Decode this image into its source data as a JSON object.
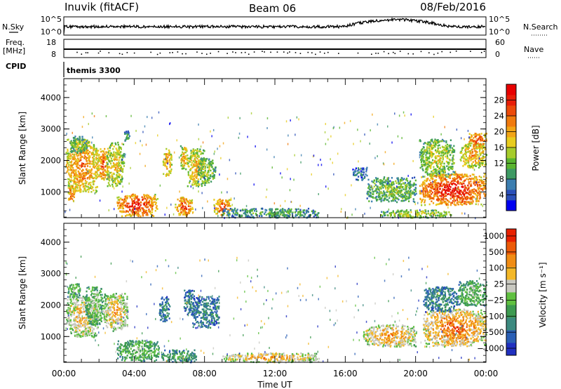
{
  "header": {
    "title": "Inuvik (fitACF)",
    "beam": "Beam 06",
    "date": "08/Feb/2016"
  },
  "params": {
    "nsky_label": "N.Sky",
    "nsearch_label": "N.Search",
    "freq_label": "Freq.",
    "freq_unit": "[MHz]",
    "nave_label": "Nave",
    "cpid_label": "CPID",
    "cpid_value": "themis 3300",
    "nsky_ticks": [
      "10^5",
      "10^0"
    ],
    "nsearch_ticks": [
      "10^5",
      "10^0"
    ],
    "freq_ticks": [
      "18",
      "8"
    ],
    "nave_ticks": [
      "60",
      "0"
    ]
  },
  "chart_data": [
    {
      "type": "heatmap",
      "name": "power",
      "xlabel": "",
      "ylabel": "Slant Range [km]",
      "xlim": [
        0,
        24
      ],
      "ylim": [
        180,
        4600
      ],
      "y_ticks": [
        1000,
        2000,
        3000,
        4000
      ],
      "colorbar": {
        "label": "Power [dB]",
        "ticks": [
          "4",
          "8",
          "12",
          "16",
          "20",
          "24",
          "28"
        ],
        "colors": [
          "#0000f0",
          "#2a4fb8",
          "#3c7eb0",
          "#3e9a64",
          "#5ab530",
          "#a6cc2c",
          "#e8cc1e",
          "#f2a516",
          "#f07a0e",
          "#ec4a0a",
          "#e81e08",
          "#e80000"
        ]
      },
      "features": [
        {
          "x": [
            0.1,
            1.9
          ],
          "y": [
            1000,
            2700
          ],
          "level": 0.78
        },
        {
          "x": [
            0.3,
            1.3
          ],
          "y": [
            2250,
            2800
          ],
          "level": 0.45
        },
        {
          "x": [
            0.2,
            0.6
          ],
          "y": [
            700,
            1200
          ],
          "level": 0.85
        },
        {
          "x": [
            1.9,
            2.5
          ],
          "y": [
            1400,
            2400
          ],
          "level": 0.82
        },
        {
          "x": [
            2.4,
            3.4
          ],
          "y": [
            1200,
            2600
          ],
          "level": 0.62
        },
        {
          "x": [
            3.0,
            5.3
          ],
          "y": [
            250,
            950
          ],
          "level": 0.94
        },
        {
          "x": [
            3.4,
            3.7
          ],
          "y": [
            2600,
            3000
          ],
          "level": 0.35
        },
        {
          "x": [
            5.6,
            6.1
          ],
          "y": [
            1500,
            2400
          ],
          "level": 0.74
        },
        {
          "x": [
            6.6,
            7.0
          ],
          "y": [
            1700,
            2500
          ],
          "level": 0.7
        },
        {
          "x": [
            7.0,
            8.0
          ],
          "y": [
            1200,
            2400
          ],
          "level": 0.66
        },
        {
          "x": [
            7.6,
            8.6
          ],
          "y": [
            1300,
            2100
          ],
          "level": 0.5
        },
        {
          "x": [
            6.3,
            7.3
          ],
          "y": [
            250,
            850
          ],
          "level": 0.86
        },
        {
          "x": [
            8.5,
            9.5
          ],
          "y": [
            250,
            800
          ],
          "level": 0.86
        },
        {
          "x": [
            9.0,
            14.5
          ],
          "y": [
            200,
            500
          ],
          "level": 0.35
        },
        {
          "x": [
            16.4,
            17.2
          ],
          "y": [
            1400,
            1800
          ],
          "level": 0.25
        },
        {
          "x": [
            17.2,
            20.0
          ],
          "y": [
            700,
            1500
          ],
          "level": 0.45
        },
        {
          "x": [
            18.0,
            22.0
          ],
          "y": [
            200,
            450
          ],
          "level": 0.55
        },
        {
          "x": [
            20.2,
            22.2
          ],
          "y": [
            1500,
            2700
          ],
          "level": 0.55
        },
        {
          "x": [
            20.2,
            24.0
          ],
          "y": [
            600,
            1600
          ],
          "level": 0.96
        },
        {
          "x": [
            22.5,
            24.0
          ],
          "y": [
            1800,
            2600
          ],
          "level": 0.7
        },
        {
          "x": [
            23.0,
            24.0
          ],
          "y": [
            2400,
            2900
          ],
          "level": 0.9
        }
      ]
    },
    {
      "type": "heatmap",
      "name": "velocity",
      "xlabel": "Time UT",
      "ylabel": "Slant Range [km]",
      "xlim": [
        0,
        24
      ],
      "ylim": [
        180,
        4600
      ],
      "x_ticks": [
        "00:00",
        "04:00",
        "08:00",
        "12:00",
        "16:00",
        "20:00",
        "00:00"
      ],
      "y_ticks": [
        1000,
        2000,
        3000,
        4000
      ],
      "colorbar": {
        "label": "Velocity [m s⁻¹]",
        "ticks": [
          "1000",
          "500",
          "100",
          "25",
          "−25",
          "−100",
          "−500",
          "−1000"
        ],
        "colors": [
          "#2030c0",
          "#2a5fb5",
          "#3c8a80",
          "#3d9a50",
          "#60c040",
          "#c8c8c0",
          "#f4b828",
          "#f08c14",
          "#ec5a08",
          "#e82000"
        ]
      },
      "features": [
        {
          "x": [
            0.1,
            1.9
          ],
          "y": [
            1000,
            2300
          ],
          "level": 0.72
        },
        {
          "x": [
            0.2,
            0.9
          ],
          "y": [
            2200,
            2700
          ],
          "level": 0.5
        },
        {
          "x": [
            1.2,
            2.2
          ],
          "y": [
            1400,
            2600
          ],
          "level": 0.55
        },
        {
          "x": [
            2.2,
            3.6
          ],
          "y": [
            1200,
            2400
          ],
          "level": 0.74
        },
        {
          "x": [
            3.0,
            5.4
          ],
          "y": [
            250,
            900
          ],
          "level": 0.5
        },
        {
          "x": [
            5.4,
            6.0
          ],
          "y": [
            1500,
            2300
          ],
          "level": 0.3
        },
        {
          "x": [
            6.8,
            7.4
          ],
          "y": [
            1700,
            2500
          ],
          "level": 0.3
        },
        {
          "x": [
            7.3,
            8.8
          ],
          "y": [
            1300,
            2300
          ],
          "level": 0.28
        },
        {
          "x": [
            5.5,
            7.5
          ],
          "y": [
            200,
            600
          ],
          "level": 0.4
        },
        {
          "x": [
            9.0,
            14.5
          ],
          "y": [
            200,
            500
          ],
          "level": 0.78
        },
        {
          "x": [
            17.0,
            20.0
          ],
          "y": [
            700,
            1400
          ],
          "level": 0.8
        },
        {
          "x": [
            20.4,
            24.0
          ],
          "y": [
            700,
            1900
          ],
          "level": 0.88
        },
        {
          "x": [
            20.4,
            22.4
          ],
          "y": [
            1800,
            2600
          ],
          "level": 0.3
        },
        {
          "x": [
            22.4,
            24.0
          ],
          "y": [
            2000,
            2800
          ],
          "level": 0.5
        }
      ]
    }
  ]
}
